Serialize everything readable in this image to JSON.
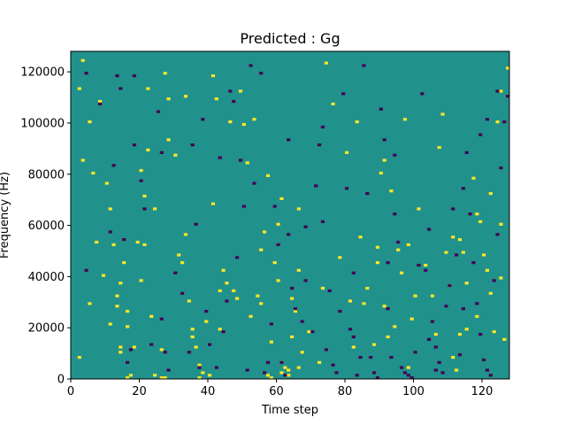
{
  "chart_data": {
    "type": "heatmap",
    "title": "Predicted : Gg",
    "xlabel": "Time step",
    "ylabel": "Frequency (Hz)",
    "xlim": [
      0,
      128
    ],
    "ylim": [
      0,
      128000
    ],
    "x_ticks": [
      0,
      20,
      40,
      60,
      80,
      100,
      120
    ],
    "y_ticks": [
      0,
      20000,
      40000,
      60000,
      80000,
      100000,
      120000
    ],
    "y_tick_labels": [
      "0",
      "20000",
      "40000",
      "60000",
      "80000",
      "100000",
      "120000"
    ],
    "n_time_steps": 128,
    "n_freq_bins": 128,
    "value_levels": [
      -1,
      0,
      1
    ],
    "colormap": "viridis",
    "colors": {
      "low": "#440154",
      "mid": "#21918c",
      "high": "#fde725",
      "axes": "#000000"
    },
    "background_value": 0,
    "cells": {
      "high": [
        [
          3,
          124
        ],
        [
          2,
          113
        ],
        [
          3,
          85
        ],
        [
          5,
          100
        ],
        [
          6,
          80
        ],
        [
          8,
          108
        ],
        [
          10,
          76
        ],
        [
          11,
          66
        ],
        [
          11,
          21
        ],
        [
          12,
          52
        ],
        [
          13,
          28
        ],
        [
          13,
          32
        ],
        [
          14,
          37
        ],
        [
          14,
          12
        ],
        [
          14,
          10
        ],
        [
          15,
          45
        ],
        [
          16,
          26
        ],
        [
          16,
          20
        ],
        [
          16,
          0
        ],
        [
          17,
          1
        ],
        [
          18,
          12
        ],
        [
          19,
          53
        ],
        [
          20,
          81
        ],
        [
          21,
          71
        ],
        [
          22,
          89
        ],
        [
          22,
          113
        ],
        [
          23,
          24
        ],
        [
          24,
          66
        ],
        [
          24,
          1
        ],
        [
          26,
          11
        ],
        [
          26,
          0
        ],
        [
          27,
          0
        ],
        [
          27,
          119
        ],
        [
          28,
          109
        ],
        [
          30,
          87
        ],
        [
          32,
          45
        ],
        [
          33,
          110
        ],
        [
          34,
          30
        ],
        [
          35,
          19
        ],
        [
          36,
          12
        ],
        [
          37,
          5
        ],
        [
          37,
          0
        ],
        [
          38,
          2
        ],
        [
          40,
          1
        ],
        [
          41,
          68
        ],
        [
          41,
          118
        ],
        [
          42,
          109
        ],
        [
          43,
          34
        ],
        [
          43,
          19
        ],
        [
          45,
          37
        ],
        [
          46,
          100
        ],
        [
          47,
          34
        ],
        [
          48,
          31
        ],
        [
          49,
          112
        ],
        [
          50,
          99
        ],
        [
          51,
          84
        ],
        [
          52,
          24
        ],
        [
          53,
          101
        ],
        [
          54,
          32
        ],
        [
          55,
          50
        ],
        [
          55,
          29
        ],
        [
          56,
          57
        ],
        [
          57,
          79
        ],
        [
          57,
          1
        ],
        [
          58,
          0
        ],
        [
          59,
          45
        ],
        [
          60,
          38
        ],
        [
          61,
          70
        ],
        [
          61,
          6
        ],
        [
          61,
          2
        ],
        [
          62,
          4
        ],
        [
          63,
          3
        ],
        [
          63,
          1
        ],
        [
          64,
          31
        ],
        [
          64,
          16
        ],
        [
          65,
          26
        ],
        [
          66,
          4
        ],
        [
          67,
          10
        ],
        [
          73,
          35
        ],
        [
          74,
          123
        ],
        [
          76,
          107
        ],
        [
          80,
          88
        ],
        [
          81,
          30
        ],
        [
          82,
          12
        ],
        [
          83,
          100
        ],
        [
          85,
          29
        ],
        [
          88,
          13
        ],
        [
          89,
          45
        ],
        [
          89,
          51
        ],
        [
          90,
          80
        ],
        [
          91,
          28
        ],
        [
          92,
          16
        ],
        [
          93,
          73
        ],
        [
          95,
          50
        ],
        [
          96,
          41
        ],
        [
          97,
          101
        ],
        [
          98,
          52
        ],
        [
          101,
          66
        ],
        [
          105,
          32
        ],
        [
          106,
          17
        ],
        [
          107,
          90
        ],
        [
          108,
          103
        ],
        [
          109,
          49
        ],
        [
          110,
          36
        ],
        [
          111,
          55
        ],
        [
          112,
          3
        ],
        [
          113,
          17
        ],
        [
          114,
          49
        ],
        [
          115,
          19
        ],
        [
          117,
          78
        ],
        [
          118,
          64
        ],
        [
          119,
          61
        ],
        [
          120,
          48
        ],
        [
          121,
          42
        ],
        [
          122,
          33
        ],
        [
          123,
          18
        ],
        [
          124,
          100
        ],
        [
          125,
          60
        ],
        [
          126,
          15
        ],
        [
          127,
          121
        ],
        [
          2,
          8
        ],
        [
          5,
          29
        ],
        [
          7,
          53
        ],
        [
          9,
          40
        ],
        [
          20,
          38
        ],
        [
          21,
          52
        ],
        [
          28,
          93
        ],
        [
          31,
          48
        ],
        [
          33,
          56
        ],
        [
          35,
          16
        ],
        [
          39,
          22
        ],
        [
          44,
          42
        ],
        [
          58,
          14
        ],
        [
          60,
          60
        ],
        [
          66,
          42
        ],
        [
          69,
          18
        ],
        [
          72,
          6
        ],
        [
          78,
          47
        ],
        [
          84,
          55
        ],
        [
          86,
          35
        ],
        [
          91,
          85
        ],
        [
          94,
          20
        ],
        [
          98,
          4
        ],
        [
          99,
          23
        ],
        [
          100,
          32
        ],
        [
          103,
          44
        ],
        [
          111,
          8
        ],
        [
          113,
          54
        ],
        [
          115,
          37
        ],
        [
          118,
          24
        ],
        [
          122,
          72
        ],
        [
          125,
          39
        ],
        [
          125,
          112
        ],
        [
          66,
          66
        ]
      ],
      "low": [
        [
          4,
          119
        ],
        [
          8,
          107
        ],
        [
          11,
          57
        ],
        [
          12,
          83
        ],
        [
          13,
          118
        ],
        [
          14,
          113
        ],
        [
          16,
          6
        ],
        [
          17,
          11
        ],
        [
          18,
          118
        ],
        [
          18,
          91
        ],
        [
          20,
          77
        ],
        [
          21,
          66
        ],
        [
          23,
          13
        ],
        [
          25,
          104
        ],
        [
          26,
          88
        ],
        [
          27,
          10
        ],
        [
          28,
          3
        ],
        [
          30,
          41
        ],
        [
          32,
          33
        ],
        [
          34,
          10
        ],
        [
          35,
          91
        ],
        [
          37,
          4
        ],
        [
          38,
          101
        ],
        [
          39,
          26
        ],
        [
          40,
          13
        ],
        [
          42,
          4
        ],
        [
          43,
          86
        ],
        [
          44,
          18
        ],
        [
          45,
          30
        ],
        [
          46,
          112
        ],
        [
          47,
          108
        ],
        [
          48,
          47
        ],
        [
          50,
          67
        ],
        [
          51,
          3
        ],
        [
          52,
          122
        ],
        [
          55,
          119
        ],
        [
          56,
          2
        ],
        [
          57,
          6
        ],
        [
          58,
          21
        ],
        [
          59,
          67
        ],
        [
          60,
          52
        ],
        [
          61,
          6
        ],
        [
          62,
          1
        ],
        [
          63,
          56
        ],
        [
          64,
          35
        ],
        [
          65,
          27
        ],
        [
          67,
          22
        ],
        [
          68,
          38
        ],
        [
          70,
          18
        ],
        [
          71,
          75
        ],
        [
          72,
          91
        ],
        [
          73,
          61
        ],
        [
          74,
          11
        ],
        [
          75,
          34
        ],
        [
          76,
          5
        ],
        [
          77,
          2
        ],
        [
          78,
          26
        ],
        [
          79,
          111
        ],
        [
          80,
          74
        ],
        [
          81,
          19
        ],
        [
          82,
          16
        ],
        [
          83,
          1
        ],
        [
          84,
          8
        ],
        [
          85,
          122
        ],
        [
          86,
          72
        ],
        [
          87,
          8
        ],
        [
          88,
          2
        ],
        [
          89,
          0
        ],
        [
          90,
          105
        ],
        [
          91,
          93
        ],
        [
          92,
          45
        ],
        [
          93,
          8
        ],
        [
          94,
          64
        ],
        [
          95,
          53
        ],
        [
          96,
          4
        ],
        [
          97,
          2
        ],
        [
          98,
          1
        ],
        [
          99,
          0
        ],
        [
          100,
          10
        ],
        [
          101,
          44
        ],
        [
          102,
          111
        ],
        [
          103,
          42
        ],
        [
          104,
          15
        ],
        [
          105,
          22
        ],
        [
          106,
          12
        ],
        [
          107,
          6
        ],
        [
          108,
          2
        ],
        [
          109,
          28
        ],
        [
          110,
          36
        ],
        [
          111,
          66
        ],
        [
          112,
          48
        ],
        [
          113,
          9
        ],
        [
          114,
          27
        ],
        [
          115,
          88
        ],
        [
          116,
          64
        ],
        [
          117,
          45
        ],
        [
          118,
          29
        ],
        [
          119,
          17
        ],
        [
          120,
          7
        ],
        [
          121,
          3
        ],
        [
          122,
          1
        ],
        [
          123,
          38
        ],
        [
          124,
          56
        ],
        [
          125,
          82
        ],
        [
          126,
          100
        ],
        [
          127,
          110
        ],
        [
          4,
          42
        ],
        [
          15,
          54
        ],
        [
          26,
          23
        ],
        [
          36,
          60
        ],
        [
          49,
          85
        ],
        [
          53,
          76
        ],
        [
          68,
          59
        ],
        [
          73,
          98
        ],
        [
          82,
          41
        ],
        [
          92,
          27
        ],
        [
          104,
          58
        ],
        [
          114,
          74
        ],
        [
          119,
          95
        ],
        [
          121,
          101
        ],
        [
          124,
          112
        ],
        [
          106,
          3
        ],
        [
          94,
          87
        ],
        [
          63,
          93
        ]
      ]
    }
  }
}
